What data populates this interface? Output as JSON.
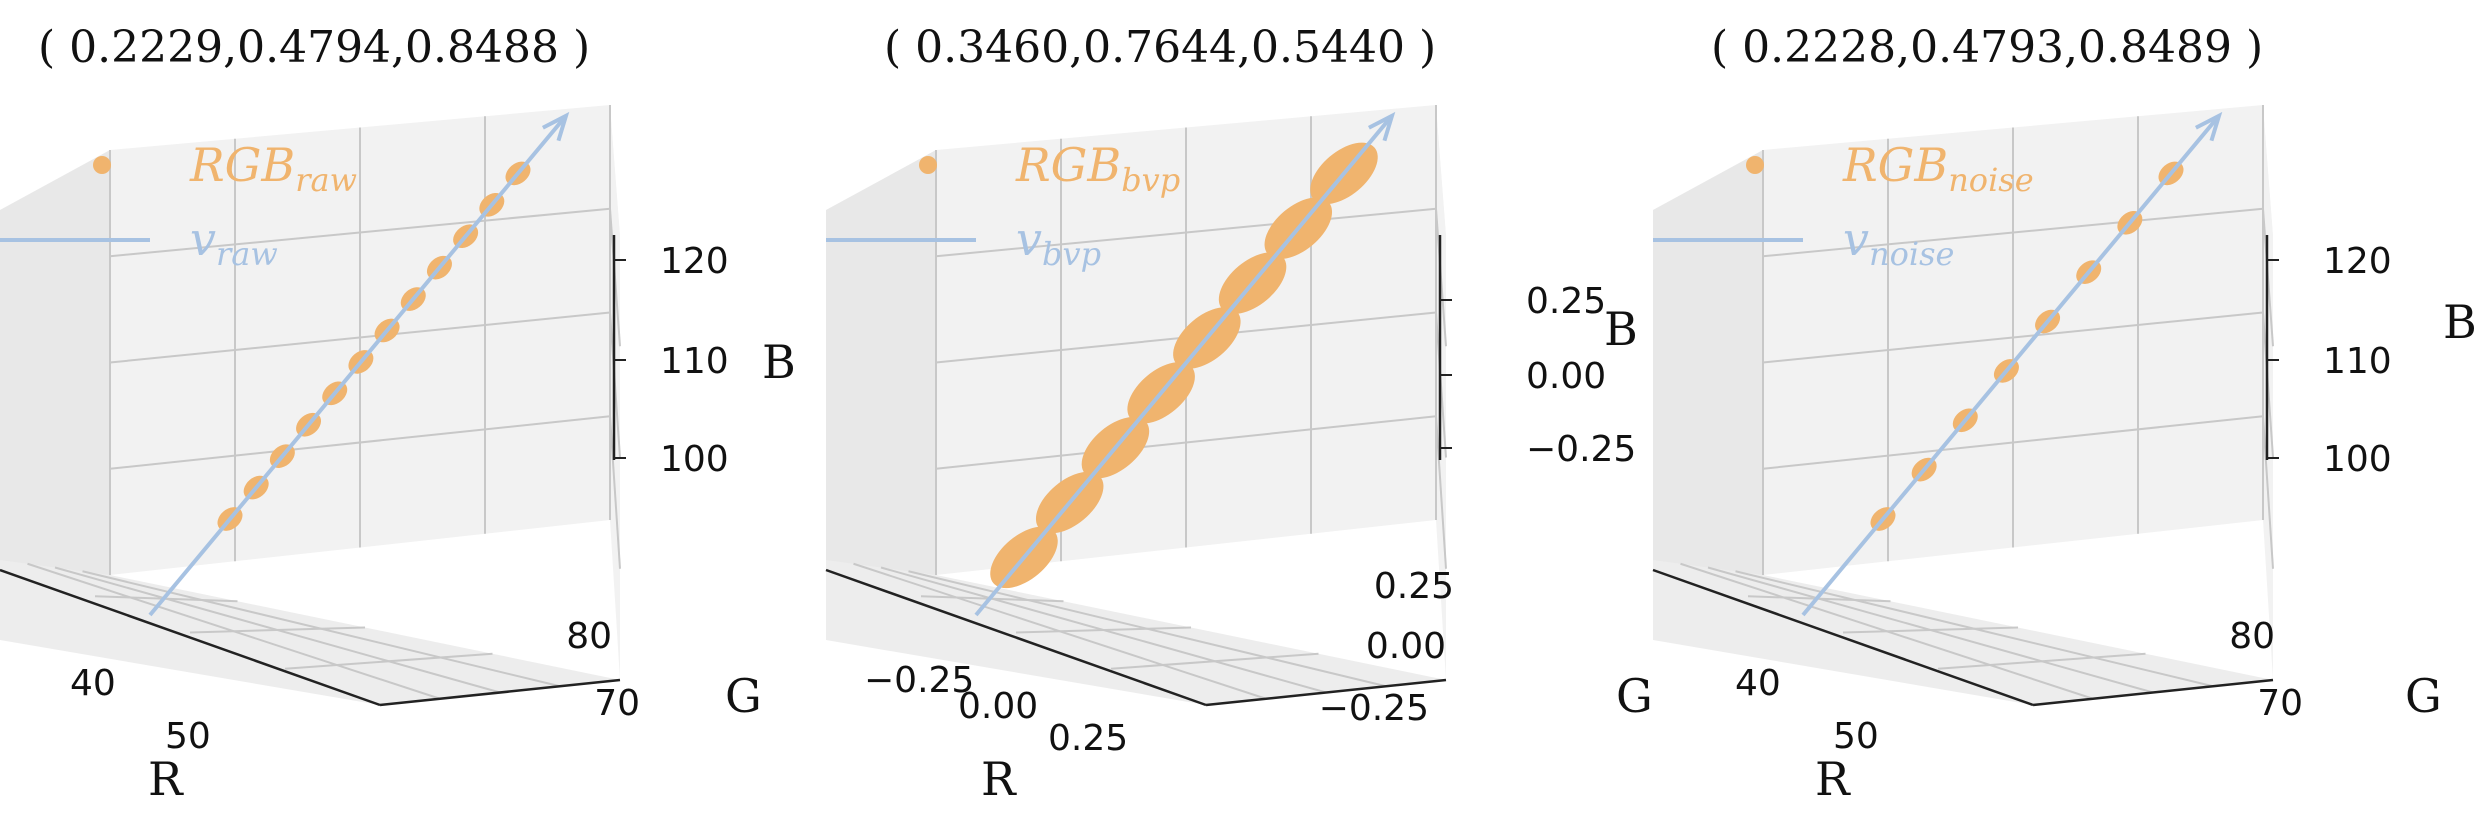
{
  "colors": {
    "points": "#f0b46e",
    "vector": "#a7c2e2",
    "pane": "#f2f2f2",
    "pane_dark": "#e8e8e8",
    "grid": "#c8c8c8",
    "axis": "#222222"
  },
  "chart_data": [
    {
      "type": "scatter",
      "title": "( 0.2229,0.4794,0.8488 )",
      "legend": {
        "points": "RGB",
        "points_sub": "raw",
        "vector": "v",
        "vector_sub": "raw",
        "placement": "top-left"
      },
      "xlabel": "R",
      "ylabel": "G",
      "zlabel": "B",
      "x_ticks": [
        "40",
        "50"
      ],
      "y_ticks": [
        "70",
        "80"
      ],
      "z_ticks": [
        "100",
        "110",
        "120"
      ],
      "grid": true,
      "direction": [
        0.2229,
        0.4794,
        0.8488
      ],
      "series": [
        {
          "name": "RGB_raw",
          "points": [
            [
              44,
              72,
              101
            ],
            [
              45,
              73,
              103
            ],
            [
              46,
              75,
              106
            ],
            [
              47,
              77,
              109
            ],
            [
              48,
              78,
              111
            ],
            [
              49,
              80,
              114
            ],
            [
              50,
              82,
              117
            ],
            [
              51,
              83,
              120
            ],
            [
              45.5,
              74,
              104
            ],
            [
              47.5,
              77,
              110
            ],
            [
              49.5,
              81,
              115
            ],
            [
              50.5,
              82,
              118
            ]
          ]
        },
        {
          "name": "v_raw",
          "line": [
            [
              43,
              70,
              96
            ],
            [
              52,
              86,
              124
            ]
          ]
        }
      ]
    },
    {
      "type": "scatter",
      "title": "( 0.3460,0.7644,0.5440 )",
      "legend": {
        "points": "RGB",
        "points_sub": "bvp",
        "vector": "v",
        "vector_sub": "bvp",
        "placement": "top-left"
      },
      "xlabel": "R",
      "ylabel": "G",
      "zlabel": "B",
      "x_ticks": [
        "−0.25",
        "0.00",
        "0.25"
      ],
      "y_ticks": [
        "−0.25",
        "0.00",
        "0.25"
      ],
      "z_ticks": [
        "−0.25",
        "0.00",
        "0.25"
      ],
      "grid": true,
      "direction": [
        0.346,
        0.7644,
        0.544
      ],
      "series": [
        {
          "name": "RGB_bvp",
          "points": [
            [
              -0.25,
              -0.3,
              -0.22
            ],
            [
              -0.15,
              -0.2,
              -0.12
            ],
            [
              -0.05,
              -0.1,
              -0.05
            ],
            [
              0.0,
              0.0,
              0.0
            ],
            [
              0.05,
              0.1,
              0.07
            ],
            [
              0.12,
              0.2,
              0.14
            ],
            [
              0.2,
              0.3,
              0.22
            ],
            [
              0.25,
              0.38,
              0.28
            ]
          ]
        },
        {
          "name": "v_bvp",
          "line": [
            [
              -0.35,
              -0.45,
              -0.35
            ],
            [
              0.35,
              0.5,
              0.42
            ]
          ]
        }
      ]
    },
    {
      "type": "scatter",
      "title": "( 0.2228,0.4793,0.8489 )",
      "legend": {
        "points": "RGB",
        "points_sub": "noise",
        "vector": "v",
        "vector_sub": "noise",
        "placement": "top-left"
      },
      "xlabel": "R",
      "ylabel": "G",
      "zlabel": "B",
      "x_ticks": [
        "40",
        "50"
      ],
      "y_ticks": [
        "70",
        "80"
      ],
      "z_ticks": [
        "100",
        "110",
        "120"
      ],
      "grid": true,
      "direction": [
        0.2228,
        0.4793,
        0.8489
      ],
      "series": [
        {
          "name": "RGB_noise",
          "points": [
            [
              44,
              72,
              101
            ],
            [
              45,
              73,
              103
            ],
            [
              46,
              75,
              106
            ],
            [
              47,
              77,
              109
            ],
            [
              48,
              78,
              111
            ],
            [
              49,
              80,
              114
            ],
            [
              50,
              82,
              117
            ],
            [
              51,
              83,
              120
            ]
          ]
        },
        {
          "name": "v_noise",
          "line": [
            [
              43,
              70,
              96
            ],
            [
              52,
              86,
              124
            ]
          ]
        }
      ]
    }
  ]
}
